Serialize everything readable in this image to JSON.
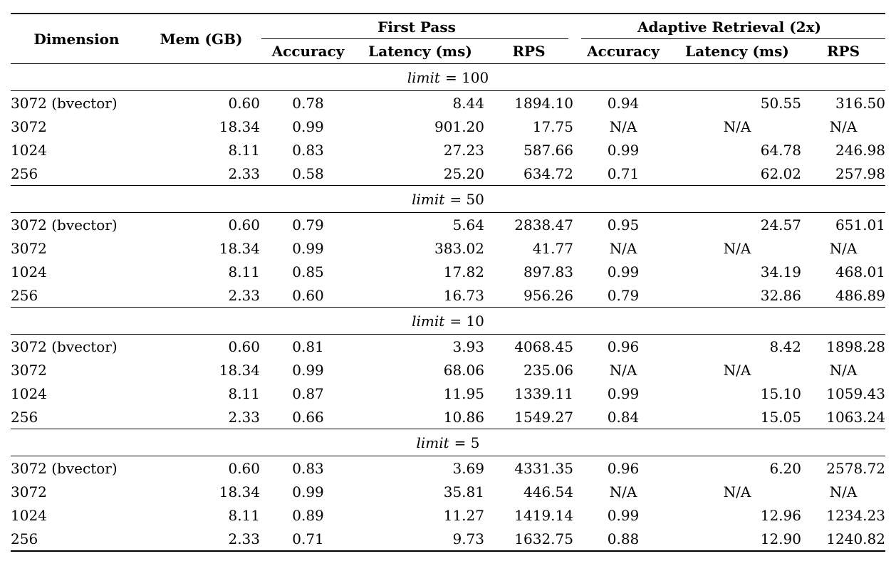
{
  "document": {
    "background_color": "#ffffff",
    "text_color": "#000000",
    "rule_color": "#000000"
  },
  "table": {
    "header": {
      "dimension": "Dimension",
      "mem": "Mem (GB)",
      "groups": [
        {
          "label": "First Pass"
        },
        {
          "label": "Adaptive Retrieval (2x)"
        }
      ],
      "sub_columns": [
        "Accuracy",
        "Latency (ms)",
        "RPS",
        "Accuracy",
        "Latency (ms)",
        "RPS"
      ]
    },
    "sections": [
      {
        "label_var": "limit",
        "label_rest": "= 100",
        "label_text": "limit = 100",
        "rows": [
          [
            "3072 (bvector)",
            "0.60",
            "0.78",
            "8.44",
            "1894.10",
            "0.94",
            "50.55",
            "316.50"
          ],
          [
            "3072",
            "18.34",
            "0.99",
            "901.20",
            "17.75",
            "N/A",
            "N/A",
            "N/A"
          ],
          [
            "1024",
            "8.11",
            "0.83",
            "27.23",
            "587.66",
            "0.99",
            "64.78",
            "246.98"
          ],
          [
            "256",
            "2.33",
            "0.58",
            "25.20",
            "634.72",
            "0.71",
            "62.02",
            "257.98"
          ]
        ]
      },
      {
        "label_var": "limit",
        "label_rest": "= 50",
        "label_text": "limit = 50",
        "rows": [
          [
            "3072 (bvector)",
            "0.60",
            "0.79",
            "5.64",
            "2838.47",
            "0.95",
            "24.57",
            "651.01"
          ],
          [
            "3072",
            "18.34",
            "0.99",
            "383.02",
            "41.77",
            "N/A",
            "N/A",
            "N/A"
          ],
          [
            "1024",
            "8.11",
            "0.85",
            "17.82",
            "897.83",
            "0.99",
            "34.19",
            "468.01"
          ],
          [
            "256",
            "2.33",
            "0.60",
            "16.73",
            "956.26",
            "0.79",
            "32.86",
            "486.89"
          ]
        ]
      },
      {
        "label_var": "limit",
        "label_rest": "= 10",
        "label_text": "limit = 10",
        "rows": [
          [
            "3072 (bvector)",
            "0.60",
            "0.81",
            "3.93",
            "4068.45",
            "0.96",
            "8.42",
            "1898.28"
          ],
          [
            "3072",
            "18.34",
            "0.99",
            "68.06",
            "235.06",
            "N/A",
            "N/A",
            "N/A"
          ],
          [
            "1024",
            "8.11",
            "0.87",
            "11.95",
            "1339.11",
            "0.99",
            "15.10",
            "1059.43"
          ],
          [
            "256",
            "2.33",
            "0.66",
            "10.86",
            "1549.27",
            "0.84",
            "15.05",
            "1063.24"
          ]
        ]
      },
      {
        "label_var": "limit",
        "label_rest": "= 5",
        "label_text": "limit = 5",
        "rows": [
          [
            "3072 (bvector)",
            "0.60",
            "0.83",
            "3.69",
            "4331.35",
            "0.96",
            "6.20",
            "2578.72"
          ],
          [
            "3072",
            "18.34",
            "0.99",
            "35.81",
            "446.54",
            "N/A",
            "N/A",
            "N/A"
          ],
          [
            "1024",
            "8.11",
            "0.89",
            "11.27",
            "1419.14",
            "0.99",
            "12.96",
            "1234.23"
          ],
          [
            "256",
            "2.33",
            "0.71",
            "9.73",
            "1632.75",
            "0.88",
            "12.90",
            "1240.82"
          ]
        ]
      }
    ]
  }
}
